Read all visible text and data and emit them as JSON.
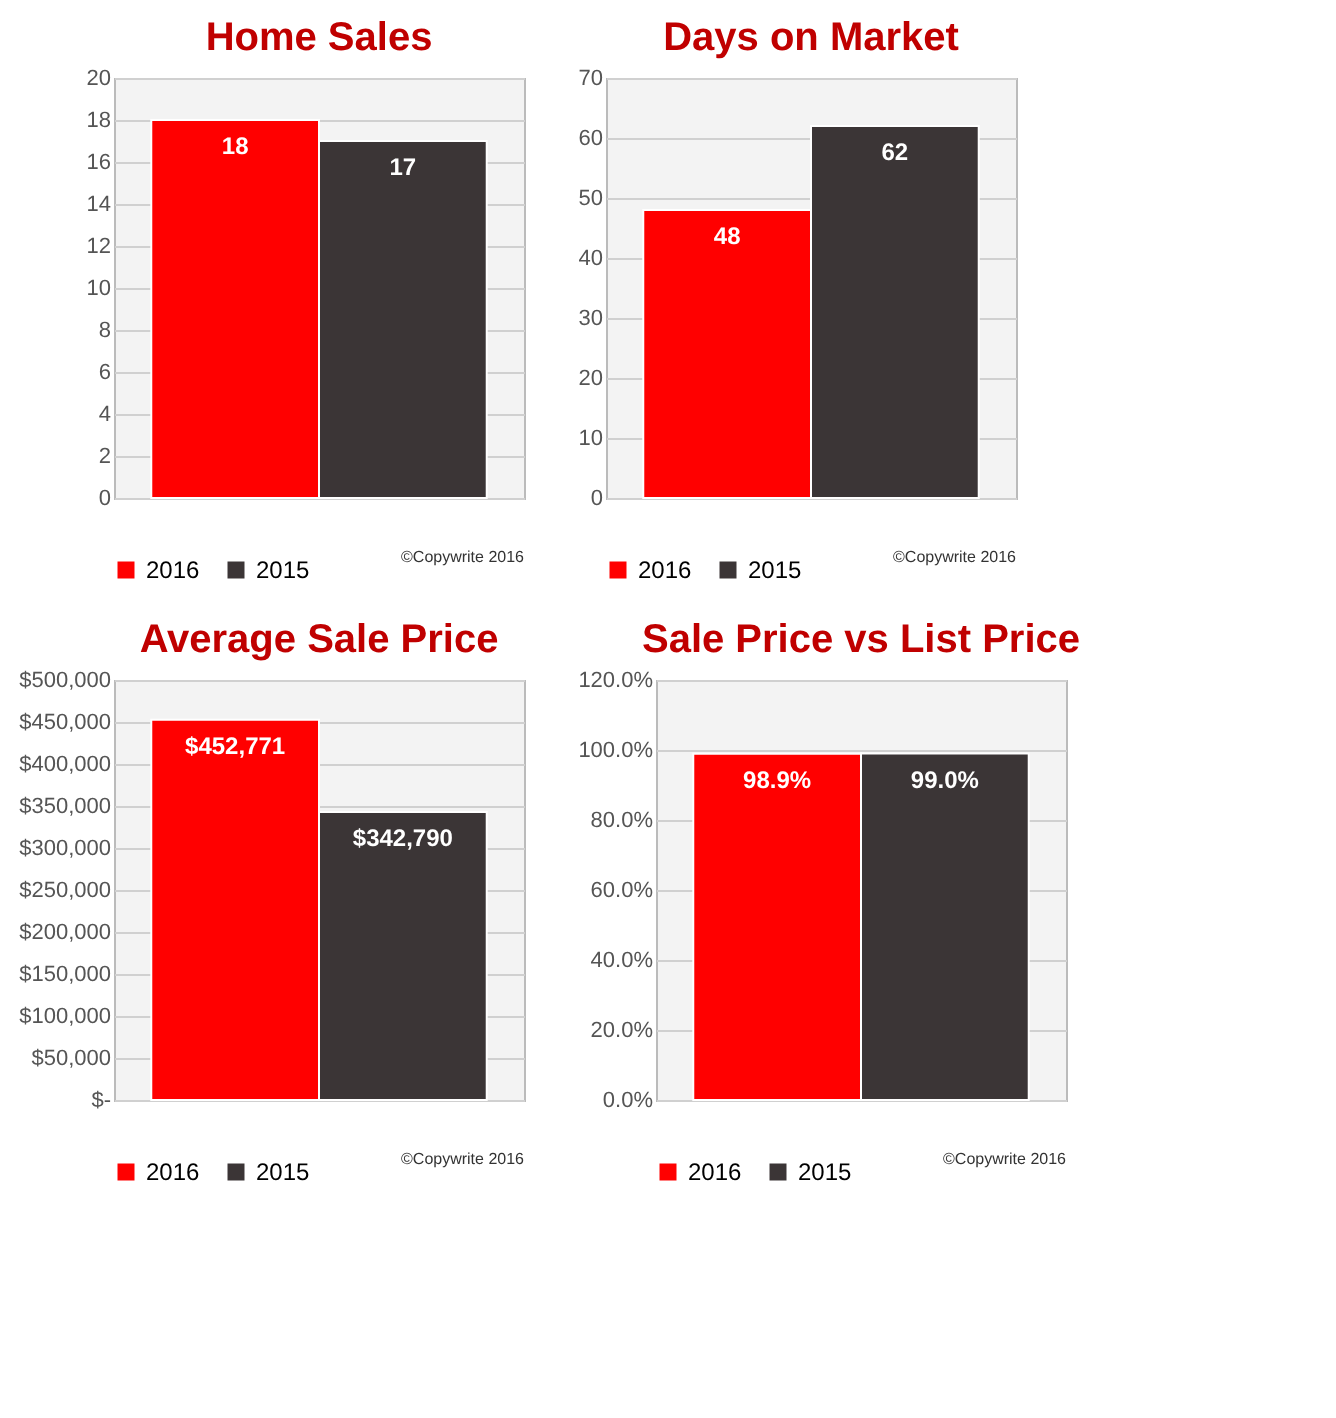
{
  "chart_data": [
    {
      "type": "bar",
      "title": "Home Sales",
      "categories": [
        null
      ],
      "ylim": [
        0,
        20
      ],
      "yticks": [
        0,
        2,
        4,
        6,
        8,
        10,
        12,
        14,
        16,
        18,
        20
      ],
      "grid": "y",
      "legend": "bottom",
      "data_labels": true,
      "annotations": [
        "©Copywrite 2016"
      ],
      "series": [
        {
          "name": "2016",
          "color": "#ff0000",
          "values": [
            18
          ]
        },
        {
          "name": "2015",
          "color": "#3b3536",
          "values": [
            17
          ]
        }
      ]
    },
    {
      "type": "bar",
      "title": "Days on Market",
      "categories": [
        null
      ],
      "ylim": [
        0,
        70
      ],
      "yticks": [
        0,
        10,
        20,
        30,
        40,
        50,
        60,
        70
      ],
      "grid": "y",
      "legend": "bottom",
      "data_labels": true,
      "annotations": [
        "©Copywrite 2016"
      ],
      "series": [
        {
          "name": "2016",
          "color": "#ff0000",
          "values": [
            48
          ]
        },
        {
          "name": "2015",
          "color": "#3b3536",
          "values": [
            62
          ]
        }
      ]
    },
    {
      "type": "bar",
      "title": "Average Sale Price",
      "categories": [
        null
      ],
      "ylim": [
        0,
        500000
      ],
      "yticks": [
        {
          "value": 0,
          "label": "$-"
        },
        {
          "value": 50000,
          "label": "$50,000"
        },
        {
          "value": 100000,
          "label": "$100,000"
        },
        {
          "value": 150000,
          "label": "$150,000"
        },
        {
          "value": 200000,
          "label": "$200,000"
        },
        {
          "value": 250000,
          "label": "$250,000"
        },
        {
          "value": 300000,
          "label": "$300,000"
        },
        {
          "value": 350000,
          "label": "$350,000"
        },
        {
          "value": 400000,
          "label": "$400,000"
        },
        {
          "value": 450000,
          "label": "$450,000"
        },
        {
          "value": 500000,
          "label": "$500,000"
        }
      ],
      "grid": "y",
      "legend": "bottom",
      "annotations": [
        "©Copywrite 2016"
      ],
      "series": [
        {
          "name": "2016",
          "color": "#ff0000",
          "values": [
            452771
          ],
          "value_labels": [
            "$452,771"
          ]
        },
        {
          "name": "2015",
          "color": "#3b3536",
          "values": [
            342790
          ],
          "value_labels": [
            "$342,790"
          ]
        }
      ]
    },
    {
      "type": "bar",
      "title": "Sale Price vs List Price",
      "categories": [
        null
      ],
      "ylim": [
        0,
        120
      ],
      "yticks": [
        {
          "value": 0,
          "label": "0.0%"
        },
        {
          "value": 20,
          "label": "20.0%"
        },
        {
          "value": 40,
          "label": "40.0%"
        },
        {
          "value": 60,
          "label": "60.0%"
        },
        {
          "value": 80,
          "label": "80.0%"
        },
        {
          "value": 100,
          "label": "100.0%"
        },
        {
          "value": 120,
          "label": "120.0%"
        }
      ],
      "grid": "y",
      "legend": "bottom",
      "annotations": [
        "©Copywrite 2016"
      ],
      "series": [
        {
          "name": "2016",
          "color": "#ff0000",
          "values": [
            98.9
          ],
          "value_labels": [
            "98.9%"
          ]
        },
        {
          "name": "2015",
          "color": "#3b3536",
          "values": [
            99.0
          ],
          "value_labels": [
            "99.0%"
          ]
        }
      ]
    }
  ]
}
